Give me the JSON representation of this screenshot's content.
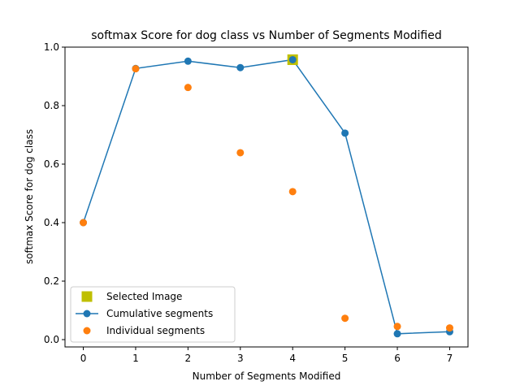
{
  "chart_data": {
    "type": "line",
    "title": "softmax Score for dog class vs Number of Segments Modified",
    "xlabel": "Number of Segments Modified",
    "ylabel": "softmax Score for dog class",
    "xlim": [
      -0.35,
      7.35
    ],
    "ylim": [
      -0.025,
      1.0
    ],
    "x_ticks": [
      "0",
      "1",
      "2",
      "3",
      "4",
      "5",
      "6",
      "7"
    ],
    "y_ticks": [
      "0.0",
      "0.2",
      "0.4",
      "0.6",
      "0.8",
      "1.0"
    ],
    "grid": false,
    "legend_position": "lower-left",
    "series": [
      {
        "name": "Cumulative segments",
        "kind": "line-markers",
        "color": "#1f77b4",
        "x": [
          0,
          1,
          2,
          3,
          4,
          5,
          6,
          7
        ],
        "y": [
          0.4,
          0.927,
          0.952,
          0.93,
          0.957,
          0.706,
          0.02,
          0.027
        ]
      },
      {
        "name": "Individual segments",
        "kind": "scatter",
        "color": "#ff7f0e",
        "x": [
          0,
          1,
          2,
          3,
          4,
          5,
          6,
          7
        ],
        "y": [
          0.4,
          0.926,
          0.862,
          0.639,
          0.506,
          0.073,
          0.045,
          0.04
        ]
      },
      {
        "name": "Selected Image",
        "kind": "square-marker",
        "color": "#bfbf00",
        "x": [
          4
        ],
        "y": [
          0.957
        ]
      }
    ],
    "legend_order": [
      "Selected Image",
      "Cumulative segments",
      "Individual segments"
    ]
  }
}
